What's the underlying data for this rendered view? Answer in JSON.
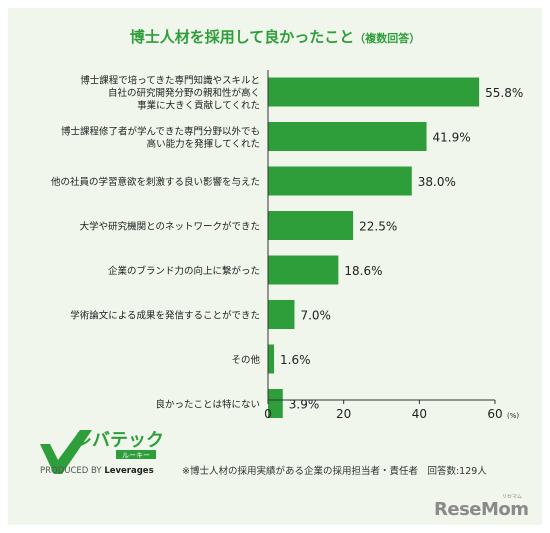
{
  "title": "博士人材を採用して良かったこと",
  "subtitle": "（複数回答）",
  "logo_text": "レバテック",
  "logo_sub": "ルーキー",
  "produced_prefix": "PRODUCED BY",
  "produced_brand": "Leverages",
  "footnote": "※博士人材の採用実績がある企業の採用担当者・責任者　回答数:129人",
  "watermark": "ReseMom",
  "watermark_sub": "リセマム",
  "colors": {
    "bar": "#2e9e3a",
    "panel": "#f0f6ec",
    "title": "#2e9e3a"
  },
  "chart_data": {
    "type": "bar",
    "orientation": "horizontal",
    "categories": [
      [
        "博士課程で培ってきた専門知識やスキルと",
        "自社の研究開発分野の親和性が高く",
        "事業に大きく貢献してくれた"
      ],
      [
        "博士課程修了者が学んできた専門分野以外でも",
        "高い能力を発揮してくれた"
      ],
      [
        "他の社員の学習意欲を刺激する良い影響を与えた"
      ],
      [
        "大学や研究機関とのネットワークができた"
      ],
      [
        "企業のブランド力の向上に繋がった"
      ],
      [
        "学術論文による成果を発信することができた"
      ],
      [
        "その他"
      ],
      [
        "良かったことは特にない"
      ]
    ],
    "values": [
      55.8,
      41.9,
      38.0,
      22.5,
      18.6,
      7.0,
      1.6,
      3.9
    ],
    "value_labels": [
      "55.8%",
      "41.9%",
      "38.0%",
      "22.5%",
      "18.6%",
      "7.0%",
      "1.6%",
      "3.9%"
    ],
    "xlim": [
      0,
      60
    ],
    "xticks": [
      "0",
      "20",
      "40",
      "60"
    ],
    "x_unit": "(%)",
    "grid": false
  }
}
